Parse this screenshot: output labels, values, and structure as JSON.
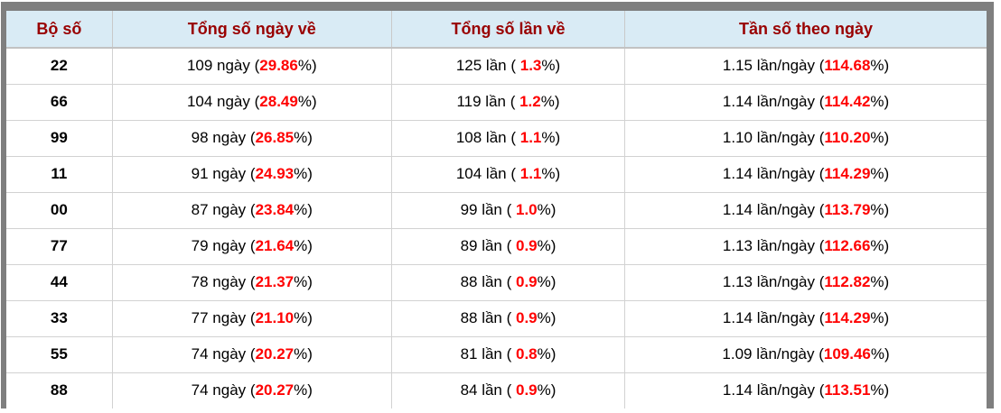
{
  "colors": {
    "header_bg": "#d9ebf5",
    "header_text": "#990000",
    "highlight_red": "#ff0000",
    "body_text": "#000000",
    "outer_border": "#7f7f7f",
    "grid_line": "#d2d2d2"
  },
  "table": {
    "columns": [
      {
        "label": "Bộ số"
      },
      {
        "label": "Tổng số ngày về"
      },
      {
        "label": "Tổng số lần về"
      },
      {
        "label": "Tần số theo ngày"
      }
    ],
    "rows": [
      {
        "pair": "22",
        "days": {
          "pre": "109 ngày (",
          "red": "29.86",
          "post": "%)"
        },
        "times": {
          "pre": "125 lần ( ",
          "red": "1.3",
          "post": "%)"
        },
        "freq": {
          "pre": "1.15 lần/ngày (",
          "red": "114.68",
          "post": "%)"
        }
      },
      {
        "pair": "66",
        "days": {
          "pre": "104 ngày (",
          "red": "28.49",
          "post": "%)"
        },
        "times": {
          "pre": "119 lần ( ",
          "red": "1.2",
          "post": "%)"
        },
        "freq": {
          "pre": "1.14 lần/ngày (",
          "red": "114.42",
          "post": "%)"
        }
      },
      {
        "pair": "99",
        "days": {
          "pre": "98 ngày (",
          "red": "26.85",
          "post": "%)"
        },
        "times": {
          "pre": "108 lần ( ",
          "red": "1.1",
          "post": "%)"
        },
        "freq": {
          "pre": "1.10 lần/ngày (",
          "red": "110.20",
          "post": "%)"
        }
      },
      {
        "pair": "11",
        "days": {
          "pre": "91 ngày (",
          "red": "24.93",
          "post": "%)"
        },
        "times": {
          "pre": "104 lần ( ",
          "red": "1.1",
          "post": "%)"
        },
        "freq": {
          "pre": "1.14 lần/ngày (",
          "red": "114.29",
          "post": "%)"
        }
      },
      {
        "pair": "00",
        "days": {
          "pre": "87 ngày (",
          "red": "23.84",
          "post": "%)"
        },
        "times": {
          "pre": "99 lần ( ",
          "red": "1.0",
          "post": "%)"
        },
        "freq": {
          "pre": "1.14 lần/ngày (",
          "red": "113.79",
          "post": "%)"
        }
      },
      {
        "pair": "77",
        "days": {
          "pre": "79 ngày (",
          "red": "21.64",
          "post": "%)"
        },
        "times": {
          "pre": "89 lần ( ",
          "red": "0.9",
          "post": "%)"
        },
        "freq": {
          "pre": "1.13 lần/ngày (",
          "red": "112.66",
          "post": "%)"
        }
      },
      {
        "pair": "44",
        "days": {
          "pre": "78 ngày (",
          "red": "21.37",
          "post": "%)"
        },
        "times": {
          "pre": "88 lần ( ",
          "red": "0.9",
          "post": "%)"
        },
        "freq": {
          "pre": "1.13 lần/ngày (",
          "red": "112.82",
          "post": "%)"
        }
      },
      {
        "pair": "33",
        "days": {
          "pre": "77 ngày (",
          "red": "21.10",
          "post": "%)"
        },
        "times": {
          "pre": "88 lần ( ",
          "red": "0.9",
          "post": "%)"
        },
        "freq": {
          "pre": "1.14 lần/ngày (",
          "red": "114.29",
          "post": "%)"
        }
      },
      {
        "pair": "55",
        "days": {
          "pre": "74 ngày (",
          "red": "20.27",
          "post": "%)"
        },
        "times": {
          "pre": "81 lần ( ",
          "red": "0.8",
          "post": "%)"
        },
        "freq": {
          "pre": "1.09 lần/ngày (",
          "red": "109.46",
          "post": "%)"
        }
      },
      {
        "pair": "88",
        "days": {
          "pre": "74 ngày (",
          "red": "20.27",
          "post": "%)"
        },
        "times": {
          "pre": "84 lần ( ",
          "red": "0.9",
          "post": "%)"
        },
        "freq": {
          "pre": "1.14 lần/ngày (",
          "red": "113.51",
          "post": "%)"
        }
      }
    ]
  },
  "chart_data": {
    "type": "table",
    "title": "",
    "columns": [
      "Bộ số",
      "Tổng số ngày về",
      "Tổng số lần về",
      "Tần số theo ngày"
    ],
    "rows": [
      [
        "22",
        "109 ngày (29.86%)",
        "125 lần ( 1.3%)",
        "1.15 lần/ngày (114.68%)"
      ],
      [
        "66",
        "104 ngày (28.49%)",
        "119 lần ( 1.2%)",
        "1.14 lần/ngày (114.42%)"
      ],
      [
        "99",
        "98 ngày (26.85%)",
        "108 lần ( 1.1%)",
        "1.10 lần/ngày (110.20%)"
      ],
      [
        "11",
        "91 ngày (24.93%)",
        "104 lần ( 1.1%)",
        "1.14 lần/ngày (114.29%)"
      ],
      [
        "00",
        "87 ngày (23.84%)",
        "99 lần ( 1.0%)",
        "1.14 lần/ngày (113.79%)"
      ],
      [
        "77",
        "79 ngày (21.64%)",
        "89 lần ( 0.9%)",
        "1.13 lần/ngày (112.66%)"
      ],
      [
        "44",
        "78 ngày (21.37%)",
        "88 lần ( 0.9%)",
        "1.13 lần/ngày (112.82%)"
      ],
      [
        "33",
        "77 ngày (21.10%)",
        "88 lần ( 0.9%)",
        "1.14 lần/ngày (114.29%)"
      ],
      [
        "55",
        "74 ngày (20.27%)",
        "81 lần ( 0.8%)",
        "1.09 lần/ngày (109.46%)"
      ],
      [
        "88",
        "74 ngày (20.27%)",
        "84 lần ( 0.9%)",
        "1.14 lần/ngày (113.51%)"
      ]
    ]
  }
}
